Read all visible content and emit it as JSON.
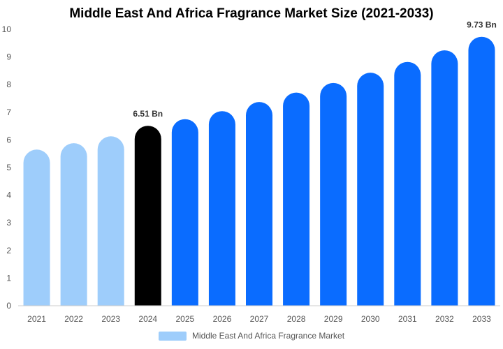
{
  "chart_data": {
    "type": "bar",
    "title": "Middle East And Africa Fragrance Market Size (2021-2033)",
    "xlabel": "",
    "ylabel": "",
    "categories": [
      "2021",
      "2022",
      "2023",
      "2024",
      "2025",
      "2026",
      "2027",
      "2028",
      "2029",
      "2030",
      "2031",
      "2032",
      "2033"
    ],
    "series": [
      {
        "name": "Middle East And Africa Fragrance Market",
        "values": [
          5.65,
          5.88,
          6.13,
          6.51,
          6.75,
          7.04,
          7.37,
          7.71,
          8.06,
          8.43,
          8.82,
          9.24,
          9.73
        ]
      }
    ],
    "data_labels": [
      {
        "category": "2024",
        "text": "6.51 Bn"
      },
      {
        "category": "2033",
        "text": "9.73 Bn"
      }
    ],
    "ylim": [
      0,
      10
    ],
    "yticks": [
      0,
      1,
      2,
      3,
      4,
      5,
      6,
      7,
      8,
      9,
      10
    ],
    "grid": false,
    "legend_position": "bottom",
    "colors": {
      "historical": "#9ecdfb",
      "base_year": "#000000",
      "forecast": "#0a6cff",
      "legend_swatch": "#9ecdfb",
      "axis": "#cccccc",
      "tick_text": "#555555"
    },
    "color_groups": [
      "historical",
      "historical",
      "historical",
      "base_year",
      "forecast",
      "forecast",
      "forecast",
      "forecast",
      "forecast",
      "forecast",
      "forecast",
      "forecast",
      "forecast"
    ]
  }
}
